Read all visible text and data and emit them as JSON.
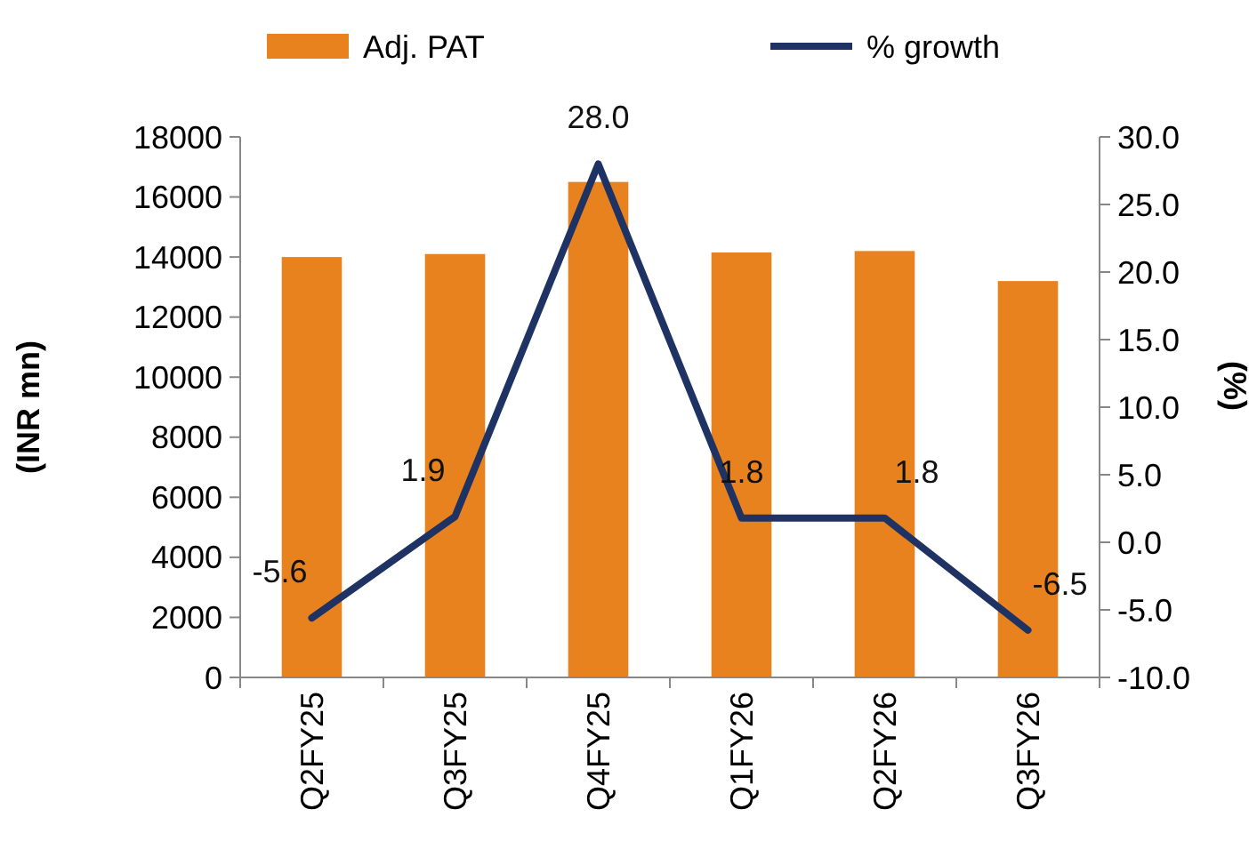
{
  "chart_data": {
    "type": "bar",
    "categories": [
      "Q2FY25",
      "Q3FY25",
      "Q4FY25",
      "Q1FY26",
      "Q2FY26",
      "Q3FY26"
    ],
    "series": [
      {
        "name": "Adj. PAT",
        "color": "#e8821e",
        "values": [
          14000,
          14100,
          16500,
          14150,
          14200,
          13200
        ]
      },
      {
        "name": "% growth",
        "type": "line",
        "axis": "y2",
        "color": "#1f3264",
        "values": [
          -5.6,
          1.9,
          28.0,
          1.8,
          1.8,
          -6.5
        ],
        "value_labels": [
          "-5.6",
          "1.9",
          "28.0",
          "1.8",
          "1.8",
          "-6.5"
        ]
      }
    ],
    "ylabel": "(INR mn)",
    "y2label": "(%)",
    "ylim": [
      0,
      18000
    ],
    "yticks": [
      0,
      2000,
      4000,
      6000,
      8000,
      10000,
      12000,
      14000,
      16000,
      18000
    ],
    "y2lim": [
      -10,
      30
    ],
    "y2ticks": [
      {
        "value": -10,
        "label": "-10.0"
      },
      {
        "value": -5,
        "label": "-5.0"
      },
      {
        "value": 0,
        "label": "0.0"
      },
      {
        "value": 5,
        "label": "5.0"
      },
      {
        "value": 10,
        "label": "10.0"
      },
      {
        "value": 15,
        "label": "15.0"
      },
      {
        "value": 20,
        "label": "20.0"
      },
      {
        "value": 25,
        "label": "25.0"
      },
      {
        "value": 30,
        "label": "30.0"
      }
    ],
    "legend": "top",
    "grid": false
  }
}
